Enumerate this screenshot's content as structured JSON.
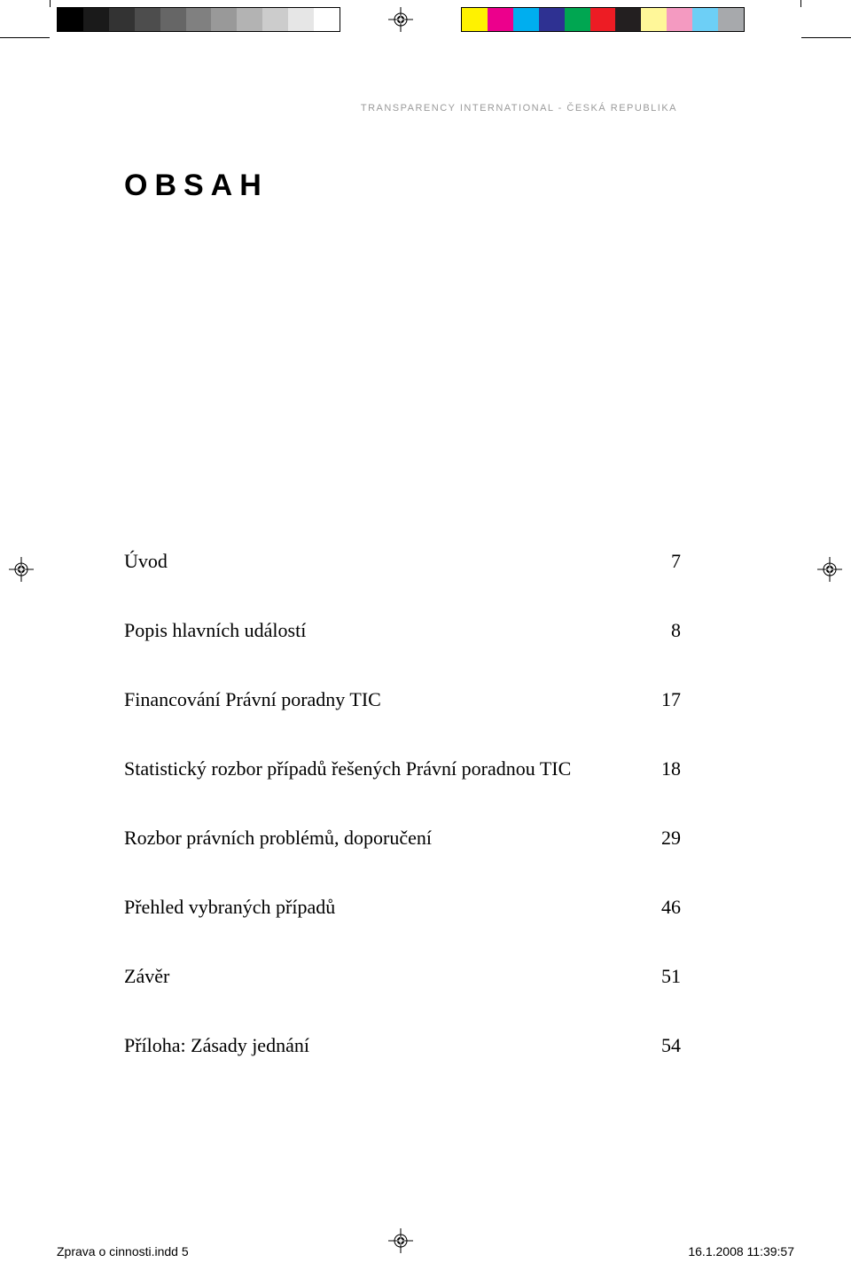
{
  "header": {
    "org_text": "TRANSPARENCY INTERNATIONAL - ČESKÁ REPUBLIKA"
  },
  "title": "OBSAH",
  "toc": {
    "items": [
      {
        "label": "Úvod",
        "page": "7"
      },
      {
        "label": "Popis hlavních událostí",
        "page": "8"
      },
      {
        "label": "Financování Právní poradny TIC",
        "page": "17"
      },
      {
        "label": "Statistický rozbor případů řešených Právní poradnou TIC",
        "page": "18"
      },
      {
        "label": "Rozbor právních problémů, doporučení",
        "page": "29"
      },
      {
        "label": "Přehled vybraných případů",
        "page": "46"
      },
      {
        "label": "Závěr",
        "page": "51"
      },
      {
        "label": "Příloha: Zásady jednání",
        "page": "54"
      }
    ]
  },
  "footer": {
    "filename": "Zprava o cinnosti.indd   5",
    "timestamp": "16.1.2008   11:39:57"
  },
  "colorbars": {
    "left_colors": [
      "#000000",
      "#1a1a1a",
      "#333333",
      "#4d4d4d",
      "#666666",
      "#808080",
      "#999999",
      "#b3b3b3",
      "#cccccc",
      "#e6e6e6",
      "#ffffff"
    ],
    "right_colors": [
      "#fff200",
      "#ec008c",
      "#00aeef",
      "#2e3192",
      "#00a651",
      "#ed1c24",
      "#231f20",
      "#fff799",
      "#f49ac1",
      "#6dcff6",
      "#a7a9ac"
    ]
  }
}
